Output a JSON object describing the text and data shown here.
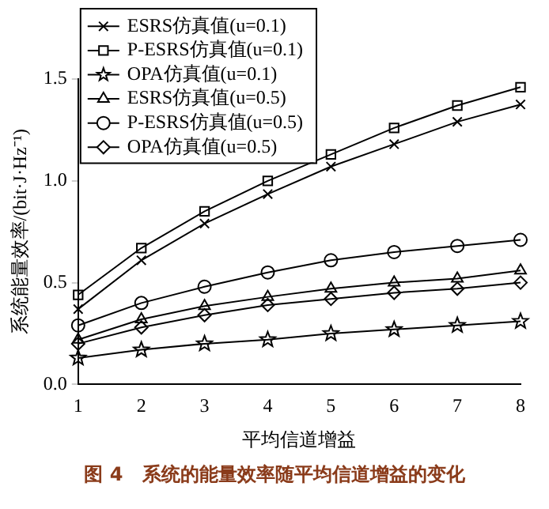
{
  "chart_data": {
    "type": "line",
    "xlabel": "平均信道增益",
    "ylabel": "系统能量效率/(bit·J·Hz⁻¹)",
    "x": [
      1,
      2,
      3,
      4,
      5,
      6,
      7,
      8
    ],
    "xlim": [
      1,
      8
    ],
    "xticks": [
      1,
      2,
      3,
      4,
      5,
      6,
      7,
      8
    ],
    "ylim": [
      0,
      1.5
    ],
    "yticks": [
      {
        "value": 0,
        "label": "0.0"
      },
      {
        "value": 0.5,
        "label": "0.5"
      },
      {
        "value": 1,
        "label": "1.0"
      },
      {
        "value": 1.5,
        "label": "1.5"
      }
    ],
    "grid": false,
    "legend": "top left",
    "line_style": "solid",
    "series": [
      {
        "name": "ESRS仿真值(u=0.1)",
        "color": "#000000",
        "marker": "cross",
        "values": [
          0.37,
          0.61,
          0.79,
          0.935,
          1.07,
          1.18,
          1.29,
          1.375
        ]
      },
      {
        "name": "P-ESRS仿真值(u=0.1)",
        "color": "#000000",
        "marker": "square",
        "values": [
          0.44,
          0.67,
          0.85,
          1.0,
          1.13,
          1.26,
          1.37,
          1.46
        ]
      },
      {
        "name": "OPA仿真值(u=0.1)",
        "color": "#000000",
        "marker": "star",
        "values": [
          0.13,
          0.17,
          0.2,
          0.22,
          0.25,
          0.27,
          0.29,
          0.31
        ]
      },
      {
        "name": "ESRS仿真值(u=0.5)",
        "color": "#000000",
        "marker": "triangle",
        "values": [
          0.22,
          0.32,
          0.385,
          0.43,
          0.47,
          0.5,
          0.52,
          0.56
        ]
      },
      {
        "name": "P-ESRS仿真值(u=0.5)",
        "color": "#000000",
        "marker": "circle",
        "values": [
          0.29,
          0.4,
          0.48,
          0.55,
          0.61,
          0.65,
          0.68,
          0.71
        ]
      },
      {
        "name": "OPA仿真值(u=0.5)",
        "color": "#000000",
        "marker": "diamond",
        "values": [
          0.2,
          0.28,
          0.34,
          0.39,
          0.42,
          0.45,
          0.47,
          0.5
        ]
      }
    ],
    "annotations": [
      "图 4　系统的能量效率随平均信道增益的变化"
    ]
  }
}
